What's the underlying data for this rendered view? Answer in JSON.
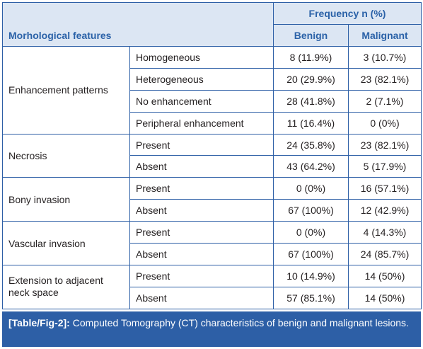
{
  "header": {
    "features_label": "Morhological features",
    "frequency_label": "Frequency n (%)",
    "benign_label": "Benign",
    "malignant_label": "Malignant"
  },
  "groups": [
    {
      "feature": "Enhancement patterns",
      "rows": [
        {
          "sub": "Homogeneous",
          "benign": "8 (11.9%)",
          "malignant": "3 (10.7%)"
        },
        {
          "sub": "Heterogeneous",
          "benign": "20 (29.9%)",
          "malignant": "23 (82.1%)"
        },
        {
          "sub": "No enhancement",
          "benign": "28 (41.8%)",
          "malignant": "2 (7.1%)"
        },
        {
          "sub": "Peripheral enhancement",
          "benign": "11 (16.4%)",
          "malignant": "0 (0%)"
        }
      ]
    },
    {
      "feature": "Necrosis",
      "rows": [
        {
          "sub": "Present",
          "benign": "24 (35.8%)",
          "malignant": "23 (82.1%)"
        },
        {
          "sub": "Absent",
          "benign": "43 (64.2%)",
          "malignant": "5 (17.9%)"
        }
      ]
    },
    {
      "feature": "Bony invasion",
      "rows": [
        {
          "sub": "Present",
          "benign": "0 (0%)",
          "malignant": "16 (57.1%)"
        },
        {
          "sub": "Absent",
          "benign": "67 (100%)",
          "malignant": "12 (42.9%)"
        }
      ]
    },
    {
      "feature": "Vascular invasion",
      "rows": [
        {
          "sub": "Present",
          "benign": "0 (0%)",
          "malignant": "4 (14.3%)"
        },
        {
          "sub": "Absent",
          "benign": "67 (100%)",
          "malignant": "24 (85.7%)"
        }
      ]
    },
    {
      "feature": "Extension to adjacent neck space",
      "rows": [
        {
          "sub": "Present",
          "benign": "10 (14.9%)",
          "malignant": "14 (50%)"
        },
        {
          "sub": "Absent",
          "benign": "57 (85.1%)",
          "malignant": "14 (50%)"
        }
      ]
    }
  ],
  "caption": {
    "label": "[Table/Fig-2]:",
    "text": " Computed Tomography (CT) characteristics of benign and malignant lesions."
  },
  "colors": {
    "border": "#2d5fa6",
    "header_bg": "#dce6f3",
    "header_text": "#2b62a8",
    "caption_bg": "#2d5fa6"
  }
}
